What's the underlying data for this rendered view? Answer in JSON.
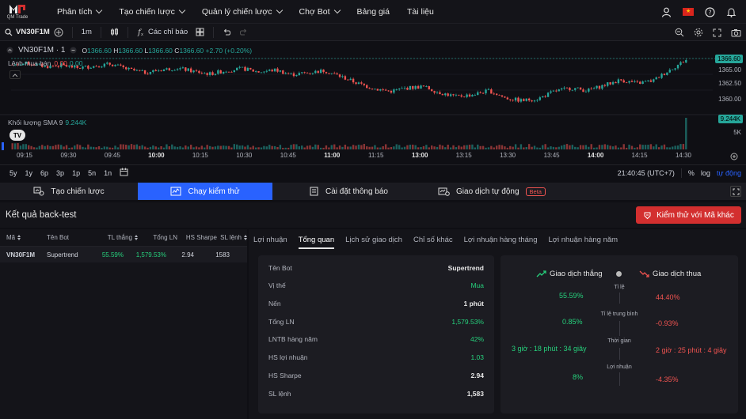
{
  "app": {
    "logo_text": "QM Trade"
  },
  "nav": {
    "items": [
      {
        "label": "Phân tích",
        "caret": true
      },
      {
        "label": "Tạo chiến lược",
        "caret": true
      },
      {
        "label": "Quản lý chiến lược",
        "caret": true
      },
      {
        "label": "Chợ Bot",
        "caret": true
      },
      {
        "label": "Bảng giá",
        "caret": false
      },
      {
        "label": "Tài liệu",
        "caret": false
      }
    ]
  },
  "toolbar": {
    "symbol": "VN30F1M",
    "interval": "1m",
    "indicators_label": "Các chỉ báo"
  },
  "chart": {
    "symbol_title": "VN30F1M · 1",
    "ohlc": {
      "o_label": "O",
      "o": "1366.60",
      "h_label": "H",
      "h": "1366.60",
      "l_label": "L",
      "l": "1366.60",
      "c_label": "C",
      "c": "1366.60",
      "change": "+2.70 (+0.20%)"
    },
    "order_label": "Lệnh mua bán",
    "order_sell": "0.00",
    "order_buy": "0.00",
    "volume_label": "Khối lượng",
    "volume_sma": "SMA 9",
    "volume_value": "9.244K",
    "price_badge": "1366.60",
    "volume_badge": "9.244K",
    "y_labels": [
      "1365.00",
      "1362.50",
      "1360.00"
    ],
    "vol_y_label": "5K",
    "x_labels": [
      "09:15",
      "09:30",
      "09:45",
      "10:00",
      "10:15",
      "10:30",
      "10:45",
      "11:00",
      "11:15",
      "13:00",
      "13:15",
      "13:30",
      "13:45",
      "14:00",
      "14:15",
      "14:30"
    ],
    "bold_x_labels": [
      "10:00",
      "11:00",
      "13:00",
      "14:00"
    ]
  },
  "chart_data": {
    "type": "candlestick",
    "title": "",
    "x_ticks": [
      "09:15",
      "09:30",
      "09:45",
      "10:00",
      "10:15",
      "10:30",
      "10:45",
      "11:00",
      "11:15",
      "13:00",
      "13:15",
      "13:30",
      "13:45",
      "14:00",
      "14:15",
      "14:30"
    ],
    "ylim": [
      1358.5,
      1367.5
    ],
    "close_path": [
      1365.4,
      1365.6,
      1365.1,
      1365.3,
      1364.9,
      1365.2,
      1365.5,
      1364.7,
      1364.2,
      1364.6,
      1364.9,
      1364.4,
      1364.0,
      1364.5,
      1364.8,
      1364.3,
      1364.6,
      1363.9,
      1364.2,
      1364.5,
      1363.6,
      1362.6,
      1361.8,
      1361.4,
      1361.9,
      1362.1,
      1361.2,
      1360.6,
      1360.9,
      1361.5,
      1360.4,
      1360.0,
      1360.3,
      1361.4,
      1361.9,
      1361.5,
      1362.3,
      1363.1,
      1362.6,
      1363.0,
      1364.6,
      1366.1
    ],
    "last_price": 1366.6,
    "volume_last": "9.244K"
  },
  "timeframes": [
    "5y",
    "1y",
    "6p",
    "3p",
    "1p",
    "5n",
    "1n"
  ],
  "tf_right": {
    "clock": "21:40:45 (UTC+7)",
    "pct": "%",
    "log": "log",
    "auto": "tự động"
  },
  "tabs": [
    {
      "label": "Tạo chiến lược",
      "active": false,
      "beta": ""
    },
    {
      "label": "Chạy kiểm thử",
      "active": true,
      "beta": ""
    },
    {
      "label": "Cài đặt thông báo",
      "active": false,
      "beta": ""
    },
    {
      "label": "Giao dịch tự động",
      "active": false,
      "beta": "Beta"
    }
  ],
  "results": {
    "title": "Kết quả back-test",
    "test_button": "Kiểm thử với Mã khác"
  },
  "left_table": {
    "headers": [
      "Mã",
      "Tên Bot",
      "TL thắng",
      "Tổng LN",
      "HS Sharpe",
      "SL lệnh"
    ],
    "rows": [
      {
        "ma": "VN30F1M",
        "bot": "Supertrend",
        "tl": "55.59%",
        "ln": "1,579.53%",
        "sharpe": "2.94",
        "sl": "1583"
      }
    ]
  },
  "right_tabs": [
    "Lợi nhuận",
    "Tổng quan",
    "Lịch sử giao dịch",
    "Chỉ số khác",
    "Lợi nhuận hàng tháng",
    "Lợi nhuận hàng năm"
  ],
  "overview": [
    {
      "k": "Tên Bot",
      "v": "Supertrend",
      "green": false
    },
    {
      "k": "Vị thế",
      "v": "Mua",
      "green": true
    },
    {
      "k": "Nến",
      "v": "1 phút",
      "green": false
    },
    {
      "k": "Tổng LN",
      "v": "1,579.53%",
      "green": true
    },
    {
      "k": "LNTB hàng năm",
      "v": "42%",
      "green": true
    },
    {
      "k": "HS lợi nhuận",
      "v": "1.03",
      "green": true
    },
    {
      "k": "HS Sharpe",
      "v": "2.94",
      "green": false
    },
    {
      "k": "SL lệnh",
      "v": "1,583",
      "green": false
    }
  ],
  "compare": {
    "win_label": "Giao dịch thắng",
    "loss_label": "Giao dịch thua",
    "rows": [
      {
        "label": "Tỉ lệ",
        "win": "55.59%",
        "loss": "44.40%"
      },
      {
        "label": "Tỉ lệ trung bình",
        "win": "0.85%",
        "loss": "-0.93%"
      },
      {
        "label": "Thời gian",
        "win": "3 giờ : 18 phút : 34 giây",
        "loss": "2 giờ : 25 phút : 4 giây"
      },
      {
        "label": "Lợi nhuận",
        "win": "8%",
        "loss": "-4.35%"
      }
    ]
  },
  "colors": {
    "up": "#26a69a",
    "down": "#ef5350",
    "accent": "#2962ff",
    "green_text": "#26d07c"
  }
}
